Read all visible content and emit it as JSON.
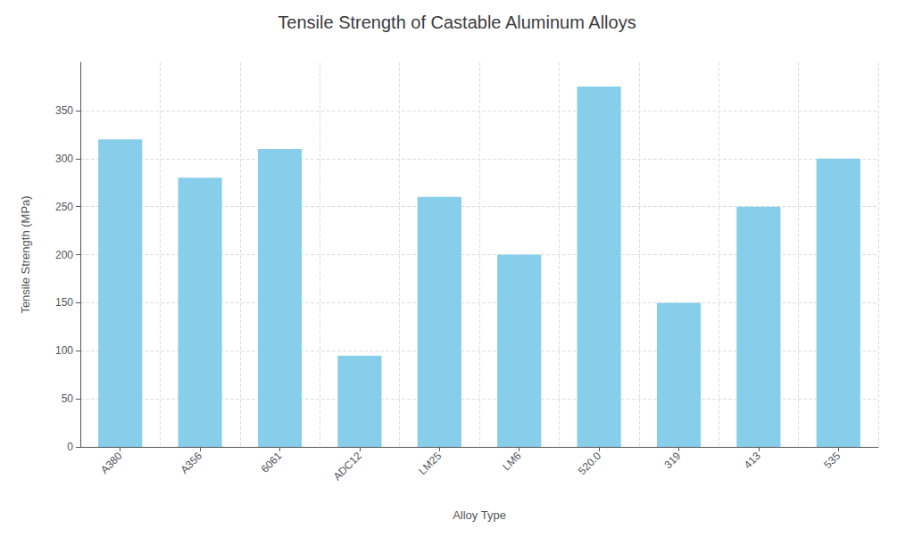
{
  "chart_data": {
    "type": "bar",
    "title": "Tensile Strength of Castable Aluminum Alloys",
    "xlabel": "Alloy Type",
    "ylabel": "Tensile Strength (MPa)",
    "categories": [
      "A380",
      "A356",
      "6061",
      "ADC12",
      "LM25",
      "LM6",
      "520.0",
      "319",
      "413",
      "535"
    ],
    "values": [
      320,
      280,
      310,
      95,
      260,
      200,
      375,
      150,
      250,
      300
    ],
    "color": "#87CEEB",
    "ylim": [
      0,
      400
    ],
    "yticks": [
      0,
      50,
      100,
      150,
      200,
      250,
      300,
      350
    ],
    "grid": true
  }
}
